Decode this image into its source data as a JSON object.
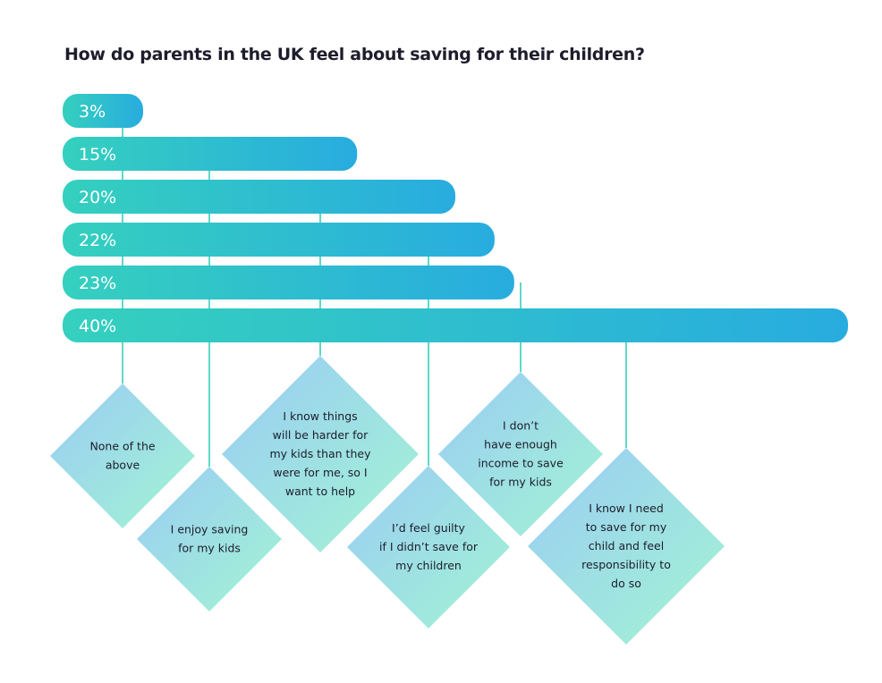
{
  "chart_data": {
    "type": "bar",
    "orientation": "horizontal",
    "title": "How do parents in the UK feel about saving for their children?",
    "unit": "%",
    "categories": [
      "None of the above",
      "I enjoy saving for my kids",
      "I know things will be harder for my kids than they were for me, so I want to help",
      "I'd feel guilty if I didn't save for my children",
      "I don't have enough income to save for my kids",
      "I know I need to save for my child and feel responsibility to do so"
    ],
    "category_lines": [
      [
        "None of the",
        "above"
      ],
      [
        "I enjoy saving",
        "for my kids"
      ],
      [
        "I know things",
        "will be harder for",
        "my kids than they",
        "were for me, so I",
        "want to help"
      ],
      [
        "I’d feel guilty",
        "if I didn’t save for",
        "my children"
      ],
      [
        "I don’t",
        "have enough",
        "income to save",
        "for my kids"
      ],
      [
        "I know I need",
        "to save for my",
        "child and feel",
        "responsibility to",
        "do so"
      ]
    ],
    "values": [
      3,
      15,
      20,
      22,
      23,
      40
    ],
    "value_labels": [
      "3%",
      "15%",
      "20%",
      "22%",
      "23%",
      "40%"
    ],
    "grid": false,
    "legend": "none",
    "colors": {
      "bar_start": "#35d0be",
      "bar_end": "#28acdf",
      "connector": "#5fd8c8",
      "diamond_start": "#9cd6ec",
      "diamond_end": "#a0eadb",
      "label_text": "#1d1d2b"
    }
  }
}
